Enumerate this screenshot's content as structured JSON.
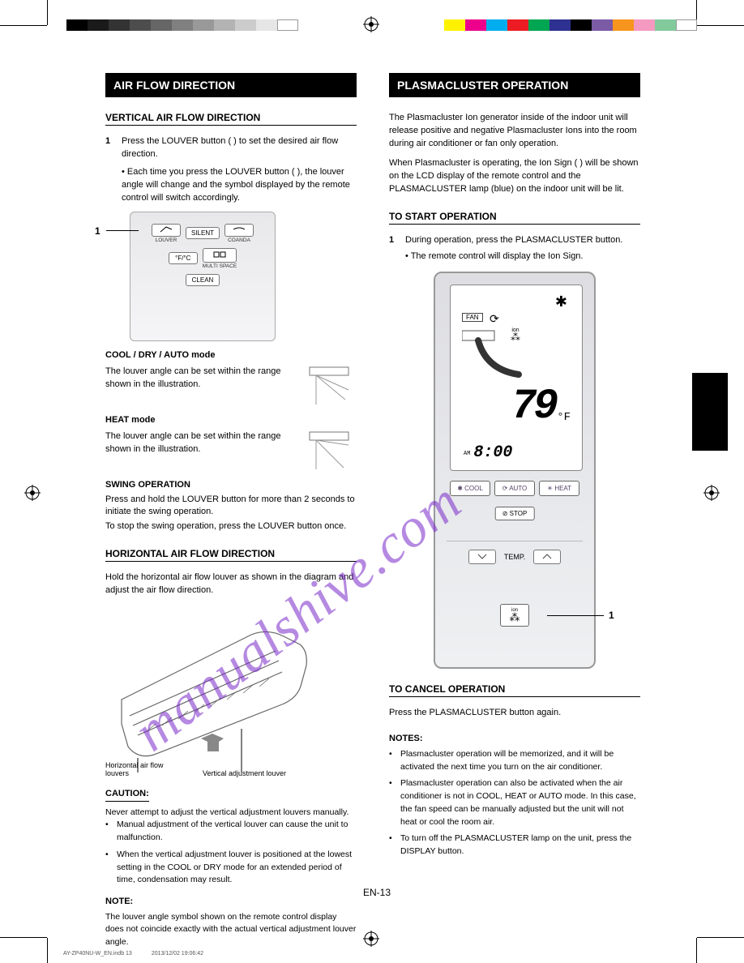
{
  "colorbar_gray": [
    "#000000",
    "#1a1a1a",
    "#333333",
    "#4d4d4d",
    "#666666",
    "#808080",
    "#999999",
    "#b3b3b3",
    "#cccccc",
    "#e6e6e6",
    "#ffffff"
  ],
  "colorbar_cmy": [
    "#fff200",
    "#ec008c",
    "#00aeef",
    "#ed1c24",
    "#00a651",
    "#2e3192",
    "#000000",
    "#7b5aa6",
    "#f7941d",
    "#f49ac1",
    "#82ca9c",
    "#ffffff"
  ],
  "watermark": "manualshive.com",
  "print_top": {
    "file": "AY-ZP40NU-W_EN.indb   13",
    "date": "2013/12/02   19:06:42"
  },
  "print_bot": {
    "file": "AY-ZP40NU-W_EN.indb   13",
    "date": "2013/12/02   19:06:42"
  },
  "page_number": "EN-13",
  "left": {
    "header": "AIR FLOW DIRECTION",
    "vert_title": "VERTICAL AIR FLOW DIRECTION",
    "step1_num": "1",
    "step1a": "Press the LOUVER button (       ) to set the desired air flow direction.",
    "step1b": "• Each time you press the LOUVER button (       ), the louver angle will change and the symbol displayed by the remote control will switch accordingly.",
    "remote_small": {
      "louver": "LOUVER",
      "silent": "SILENT",
      "coanda": "COANDA",
      "fc": "°F/°C",
      "multi": "MULTI SPACE",
      "clean": "CLEAN",
      "lead_num": "1"
    },
    "cool_dry": {
      "label": "COOL / DRY / AUTO mode",
      "body": "The louver angle can be set within the range shown in the illustration."
    },
    "heat": {
      "label": "HEAT mode",
      "body": "The louver angle can be set within the range shown in the illustration."
    },
    "swing": {
      "label": "SWING OPERATION",
      "body1": "Press and hold the LOUVER button for more than 2 seconds to initiate the swing operation.",
      "body2": "To stop the swing operation, press the LOUVER button once."
    },
    "horiz_title": "HORIZONTAL AIR FLOW DIRECTION",
    "horiz_body": "Hold the horizontal air flow louver as shown in the diagram and adjust the air flow direction.",
    "unit_label_left": "Horizontal air flow louvers",
    "unit_label_right": "Vertical adjustment louver",
    "caution": "CAUTION:",
    "caution_body": "Never attempt to adjust the vertical adjustment louvers manually.",
    "caution_list": [
      "Manual adjustment of the vertical louver can cause the unit to malfunction.",
      "When the vertical adjustment louver is positioned at the lowest setting in the COOL or DRY mode for an extended period of time, condensation may result."
    ],
    "note_head": "NOTE:",
    "note_body": "The louver angle symbol shown on the remote control display does not coincide exactly with the actual vertical adjustment louver angle."
  },
  "right": {
    "header": "PLASMACLUSTER OPERATION",
    "intro": "The Plasmacluster Ion generator inside of the indoor unit will release positive and negative Plasmacluster Ions into the room during air conditioner or fan only operation.",
    "whenon": "When Plasmacluster is operating, the Ion Sign (       ) will be shown on the LCD display of the remote control and the PLASMACLUSTER lamp (blue) on the indoor unit will be lit.",
    "start_title": "TO START OPERATION",
    "step1_num": "1",
    "step1": "During operation, press the PLASMACLUSTER button.",
    "step1b": "• The remote control will display the Ion Sign.",
    "lcd": {
      "fan_label": "FAN",
      "temp_value": "79",
      "temp_unit": "°F",
      "clock_ampm": "AM",
      "clock": "8:00",
      "ion_label": "ion"
    },
    "remote": {
      "cool": "✱ COOL",
      "auto": "⟳ AUTO",
      "heat": "☀ HEAT",
      "stop": "⊘ STOP",
      "temp_label": "TEMP.",
      "ion_label": "ion",
      "lead_num": "1"
    },
    "cancel_title": "TO CANCEL OPERATION",
    "cancel_body": "Press the PLASMACLUSTER button again.",
    "note_head": "NOTES:",
    "notes": [
      "Plasmacluster operation will be memorized, and it will be activated the next time you turn on the air conditioner.",
      "Plasmacluster operation can also be activated when the air conditioner is not in COOL, HEAT or AUTO mode. In this case, the fan speed can be manually adjusted but the unit will not heat or cool the room air.",
      "To turn off the PLASMACLUSTER lamp on the unit, press the DISPLAY button."
    ]
  }
}
